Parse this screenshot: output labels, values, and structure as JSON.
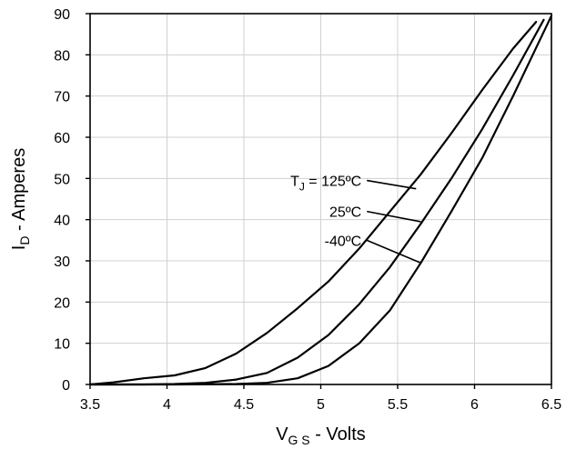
{
  "chart_data": {
    "type": "line",
    "xlabel": {
      "main": "V",
      "sub": "G S",
      "suffix": " - Volts"
    },
    "ylabel": {
      "main": "I",
      "sub": "D",
      "suffix": " - Amperes"
    },
    "xlim": [
      3.5,
      6.5
    ],
    "ylim": [
      0,
      90
    ],
    "xticks": [
      3.5,
      4,
      4.5,
      5,
      5.5,
      6,
      6.5
    ],
    "xtick_labels": [
      "3.5",
      "4",
      "4.5",
      "5",
      "5.5",
      "6",
      "6.5"
    ],
    "yticks": [
      0,
      10,
      20,
      30,
      40,
      50,
      60,
      70,
      80,
      90
    ],
    "ytick_labels": [
      "0",
      "10",
      "20",
      "30",
      "40",
      "50",
      "60",
      "70",
      "80",
      "90"
    ],
    "grid": true,
    "series": [
      {
        "name": "T_J = 125ºC",
        "label_main": "T",
        "label_sub": "J",
        "label_suffix": " = 125ºC",
        "x": [
          3.5,
          3.65,
          3.85,
          4.05,
          4.25,
          4.45,
          4.65,
          4.85,
          5.05,
          5.25,
          5.45,
          5.65,
          5.85,
          6.05,
          6.25,
          6.4
        ],
        "y": [
          0,
          0.5,
          1.5,
          2.2,
          4,
          7.5,
          12.5,
          18.5,
          25,
          33,
          42,
          51,
          61,
          71.5,
          81.5,
          88
        ]
      },
      {
        "name": "25ºC",
        "label_main": "25ºC",
        "x": [
          3.5,
          3.85,
          4.05,
          4.25,
          4.45,
          4.65,
          4.85,
          5.05,
          5.25,
          5.45,
          5.65,
          5.85,
          6.05,
          6.25,
          6.45
        ],
        "y": [
          0,
          0,
          0.1,
          0.4,
          1.2,
          2.8,
          6.5,
          12,
          19.5,
          28.5,
          39,
          50,
          62,
          75,
          88.5
        ]
      },
      {
        "name": "-40ºC",
        "label_main": "-40ºC",
        "x": [
          3.5,
          4.05,
          4.45,
          4.65,
          4.85,
          5.05,
          5.25,
          5.45,
          5.65,
          5.85,
          6.05,
          6.25,
          6.5
        ],
        "y": [
          0,
          0,
          0.1,
          0.4,
          1.5,
          4.5,
          10,
          18,
          29.5,
          42,
          55,
          70,
          89.5
        ]
      }
    ],
    "annotations": [
      {
        "series_index": 0,
        "label_anchor": [
          5.3,
          49.5
        ],
        "point_at": [
          5.62,
          47.5
        ]
      },
      {
        "series_index": 1,
        "label_anchor": [
          5.3,
          42
        ],
        "point_at": [
          5.65,
          39.5
        ]
      },
      {
        "series_index": 2,
        "label_anchor": [
          5.3,
          35
        ],
        "point_at": [
          5.65,
          29.5
        ]
      }
    ]
  }
}
